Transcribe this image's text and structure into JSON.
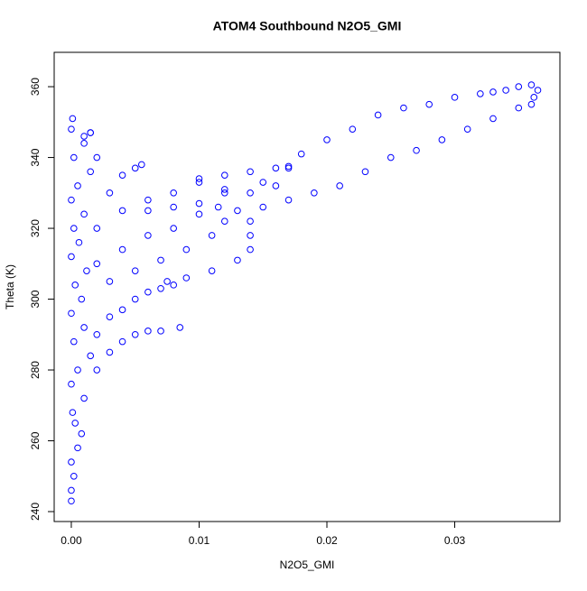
{
  "chart_data": {
    "type": "scatter",
    "title": "ATOM4 Southbound N2O5_GMI",
    "x_label": "N2O5_GMI",
    "y_label": "Theta (K)",
    "color": "#0000ff",
    "xlim": [
      -0.00134,
      0.03823
    ],
    "ylim": [
      237.2,
      369.7
    ],
    "xticks": [
      {
        "value": 0,
        "label": "0.00"
      },
      0.01,
      0.02,
      0.03
    ],
    "yticks": [
      240,
      260,
      280,
      300,
      320,
      340,
      360
    ],
    "x": [
      0,
      0,
      0.0002,
      0,
      0.0005,
      0.0008,
      0.0003,
      0.0001,
      0.001,
      0,
      0.0005,
      0.0015,
      0.0002,
      0.001,
      0,
      0.0008,
      0.0003,
      0.0012,
      0,
      0.0006,
      0.0002,
      0.001,
      0,
      0.0005,
      0.0015,
      0.0002,
      0.001,
      0,
      0.0001,
      0.0015,
      0.002,
      0.003,
      0.004,
      0.005,
      0.006,
      0.007,
      0.0085,
      0.002,
      0.003,
      0.004,
      0.005,
      0.006,
      0.007,
      0.008,
      0.003,
      0.005,
      0.007,
      0.009,
      0.011,
      0.012,
      0.013,
      0.014,
      0.014,
      0.014,
      0.002,
      0.004,
      0.006,
      0.008,
      0.01,
      0.0115,
      0.002,
      0.004,
      0.006,
      0.008,
      0.01,
      0.012,
      0.014,
      0.016,
      0.017,
      0.003,
      0.005,
      0.0055,
      0.004,
      0.002,
      0.001,
      0.0015,
      0.006,
      0.008,
      0.01,
      0.012,
      0.015,
      0.017,
      0.01,
      0.012,
      0.014,
      0.016,
      0.018,
      0.02,
      0.022,
      0.024,
      0.026,
      0.028,
      0.03,
      0.032,
      0.033,
      0.034,
      0.035,
      0.036,
      0.0365,
      0.0362,
      0.036,
      0.035,
      0.033,
      0.031,
      0.029,
      0.027,
      0.025,
      0.023,
      0.021,
      0.019,
      0.017,
      0.015,
      0.013,
      0.011,
      0.009,
      0.0075
    ],
    "y": [
      243,
      246,
      250,
      254,
      258,
      262,
      265,
      268,
      272,
      276,
      280,
      284,
      288,
      292,
      296,
      300,
      304,
      308,
      312,
      316,
      320,
      324,
      328,
      332,
      336,
      340,
      344,
      348,
      351,
      347,
      280,
      285,
      288,
      290,
      291,
      291,
      292,
      290,
      295,
      297,
      300,
      302,
      303,
      304,
      305,
      308,
      311,
      314,
      318,
      322,
      325,
      322,
      318,
      314,
      310,
      314,
      318,
      320,
      324,
      326,
      320,
      325,
      328,
      330,
      334,
      335,
      336,
      337,
      337.5,
      330,
      337,
      338,
      335,
      340,
      346,
      347,
      325,
      326,
      327,
      330,
      333,
      337,
      333,
      331,
      330,
      332,
      341,
      345,
      348,
      352,
      354,
      355,
      357,
      358,
      358.5,
      359,
      360,
      360.5,
      359,
      357,
      355,
      354,
      351,
      348,
      345,
      342,
      340,
      336,
      332,
      330,
      328,
      326,
      311,
      308,
      306,
      305
    ]
  }
}
